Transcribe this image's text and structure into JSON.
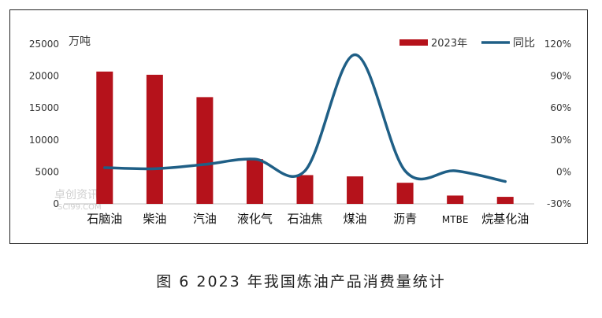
{
  "caption": "图 6  2023 年我国炼油产品消费量统计",
  "colors": {
    "bar": "#b5121b",
    "line": "#1f5f86"
  },
  "chart_data": {
    "type": "bar+line",
    "categories": [
      "石脑油",
      "柴油",
      "汽油",
      "液化气",
      "石油焦",
      "煤油",
      "沥青",
      "MTBE",
      "烷基化油"
    ],
    "series": [
      {
        "name": "2023年",
        "type": "bar",
        "axis": "left",
        "values": [
          20700,
          20200,
          16700,
          7000,
          4500,
          4300,
          3300,
          1300,
          1100
        ]
      },
      {
        "name": "同比",
        "type": "line",
        "axis": "right",
        "smooth": true,
        "values": [
          4,
          3,
          7,
          12,
          1,
          110,
          1,
          1,
          -9
        ]
      }
    ],
    "y_left": {
      "unit_label": "万吨",
      "min": 0,
      "max": 25000,
      "ticks": [
        "0",
        "5000",
        "10000",
        "15000",
        "20000",
        "25000"
      ]
    },
    "y_right": {
      "min": -30,
      "max": 120,
      "ticks": [
        "-30%",
        "0%",
        "30%",
        "60%",
        "90%",
        "120%"
      ]
    },
    "legend_position": "top-right",
    "grid": false,
    "watermark": "卓创资讯 SCI99.COM"
  }
}
